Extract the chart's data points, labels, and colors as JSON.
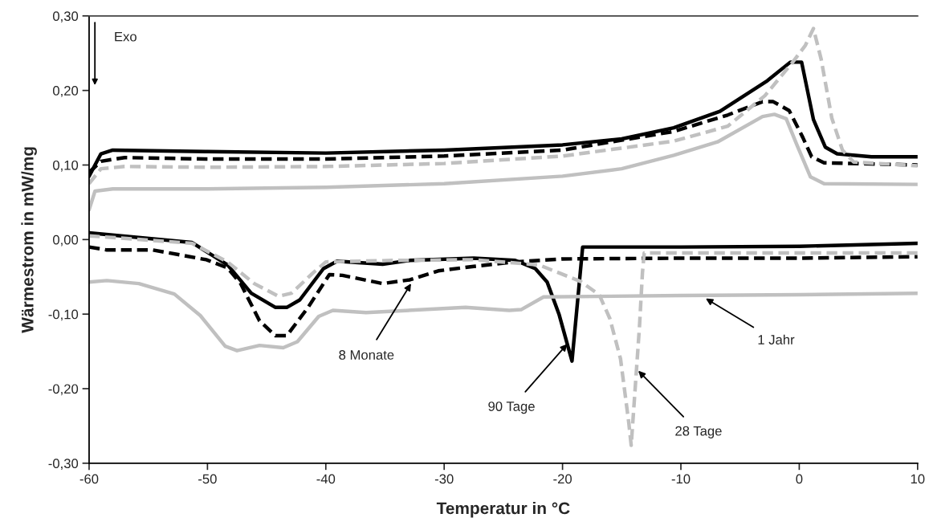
{
  "chart_data": {
    "type": "line",
    "xlabel": "Temperatur in °C",
    "ylabel": "Wärmestrom in mW/mg",
    "xlim": [
      -60,
      10
    ],
    "xticks": [
      -60,
      -50,
      -40,
      -30,
      -20,
      -10,
      0,
      10
    ],
    "ylim": [
      -0.3,
      0.3
    ],
    "yticks": [
      {
        "value": -0.3,
        "label": "-0,30"
      },
      {
        "value": -0.2,
        "label": "-0,20"
      },
      {
        "value": -0.1,
        "label": "-0,10"
      },
      {
        "value": 0,
        "label": "0,00"
      },
      {
        "value": 0.1,
        "label": "0,10"
      },
      {
        "value": 0.2,
        "label": "0,20"
      },
      {
        "value": 0.3,
        "label": "0,30"
      }
    ],
    "grid": false,
    "marker": "none",
    "series": [
      {
        "color": "#000000",
        "line_style": "solid",
        "x": [
          -60,
          -59,
          -58,
          -50,
          -40,
          -30,
          -20,
          -15,
          -10.6,
          -6.7,
          -2.7,
          -0.75,
          0.2,
          1.2,
          2.2,
          3.2,
          6.1,
          10
        ],
        "values": [
          0.085,
          0.115,
          0.12,
          0.118,
          0.116,
          0.12,
          0.127,
          0.135,
          0.15,
          0.172,
          0.213,
          0.238,
          0.238,
          0.161,
          0.124,
          0.115,
          0.111,
          0.111
        ]
      },
      {
        "color": "#000000",
        "line_style": "dashed",
        "x": [
          -60,
          -59,
          -57,
          -50,
          -40,
          -30,
          -20,
          -10.6,
          -6.05,
          -3.1,
          -2.2,
          -0.85,
          0.3,
          1.05,
          2.1,
          10
        ],
        "values": [
          0.09,
          0.105,
          0.11,
          0.108,
          0.108,
          0.112,
          0.12,
          0.145,
          0.167,
          0.185,
          0.185,
          0.173,
          0.137,
          0.111,
          0.103,
          0.1
        ]
      },
      {
        "color": "#c0c0c0",
        "line_style": "dashed",
        "x": [
          -60,
          -59,
          -57,
          -50,
          -40,
          -30,
          -20,
          -10.6,
          -6.05,
          -2.9,
          -0.6,
          0.5,
          1.2,
          1.85,
          2.75,
          3.65,
          4.6,
          10
        ],
        "values": [
          0.075,
          0.095,
          0.098,
          0.097,
          0.098,
          0.102,
          0.112,
          0.132,
          0.152,
          0.193,
          0.237,
          0.26,
          0.283,
          0.242,
          0.163,
          0.12,
          0.104,
          0.099
        ]
      },
      {
        "color": "#c0c0c0",
        "line_style": "solid",
        "x": [
          -60,
          -59.5,
          -58,
          -50,
          -40,
          -30,
          -20,
          -15,
          -10.6,
          -6.9,
          -3.1,
          -2.1,
          -1.1,
          -0.2,
          0.95,
          2.1,
          10
        ],
        "values": [
          0.04,
          0.065,
          0.068,
          0.068,
          0.07,
          0.075,
          0.085,
          0.095,
          0.113,
          0.131,
          0.165,
          0.168,
          0.162,
          0.127,
          0.084,
          0.075,
          0.074
        ]
      },
      {
        "color": "#000000",
        "line_style": "solid",
        "x": [
          -60,
          -51.3,
          -48.3,
          -46.3,
          -44.25,
          -43.3,
          -42.2,
          -40.2,
          -39.05,
          -35.2,
          -32.9,
          -27.5,
          -24,
          -22.3,
          -21.3,
          -20.3,
          -19.2,
          -18.3,
          -10,
          0,
          10
        ],
        "values": [
          0.009,
          -0.004,
          -0.034,
          -0.072,
          -0.091,
          -0.091,
          -0.081,
          -0.039,
          -0.029,
          -0.033,
          -0.028,
          -0.025,
          -0.028,
          -0.039,
          -0.057,
          -0.1,
          -0.163,
          -0.01,
          -0.01,
          -0.009,
          -0.005
        ]
      },
      {
        "color": "#000000",
        "line_style": "dashed",
        "x": [
          -60,
          -58.5,
          -54.6,
          -50.1,
          -48.3,
          -47.2,
          -45.6,
          -44.25,
          -43.3,
          -41.5,
          -39.7,
          -38.6,
          -35.2,
          -32.9,
          -30.5,
          -27.5,
          -24,
          -20,
          -10,
          0,
          10
        ],
        "values": [
          -0.01,
          -0.014,
          -0.014,
          -0.027,
          -0.038,
          -0.059,
          -0.109,
          -0.129,
          -0.129,
          -0.091,
          -0.047,
          -0.048,
          -0.059,
          -0.054,
          -0.042,
          -0.036,
          -0.03,
          -0.026,
          -0.025,
          -0.025,
          -0.023
        ]
      },
      {
        "color": "#c0c0c0",
        "line_style": "dashed",
        "x": [
          -60,
          -51.3,
          -48.3,
          -46.05,
          -44,
          -42.9,
          -41.1,
          -40,
          -34.3,
          -27.5,
          -22,
          -18.5,
          -16.9,
          -16,
          -15.1,
          -14.4,
          -14.2,
          -14,
          -13.5,
          -13.25,
          -13.1,
          0,
          10
        ],
        "values": [
          0.005,
          -0.005,
          -0.03,
          -0.059,
          -0.076,
          -0.072,
          -0.045,
          -0.03,
          -0.028,
          -0.027,
          -0.034,
          -0.056,
          -0.074,
          -0.106,
          -0.16,
          -0.246,
          -0.276,
          -0.231,
          -0.117,
          -0.045,
          -0.018,
          -0.018,
          -0.018
        ]
      },
      {
        "color": "#c0c0c0",
        "line_style": "solid",
        "x": [
          -60,
          -58.5,
          -55.8,
          -52.8,
          -50.6,
          -48.5,
          -47.5,
          -45.6,
          -43.6,
          -42.4,
          -40.6,
          -39.4,
          -36.6,
          -28.2,
          -24.5,
          -23.5,
          -21.6,
          -10,
          0,
          10
        ],
        "values": [
          -0.057,
          -0.055,
          -0.059,
          -0.073,
          -0.102,
          -0.143,
          -0.149,
          -0.142,
          -0.145,
          -0.137,
          -0.103,
          -0.095,
          -0.098,
          -0.091,
          -0.095,
          -0.094,
          -0.077,
          -0.075,
          -0.074,
          -0.072
        ]
      }
    ],
    "annotations": [
      "Exo",
      {
        "text": "8 Monate",
        "x": -32.8,
        "y": -0.059
      },
      {
        "text": "90 Tage",
        "x": -19.6,
        "y": -0.14
      },
      {
        "text": "28 Tage",
        "x": -13.6,
        "y": -0.176
      },
      {
        "text": "1 Jahr",
        "x": -7.9,
        "y": -0.079
      }
    ]
  }
}
